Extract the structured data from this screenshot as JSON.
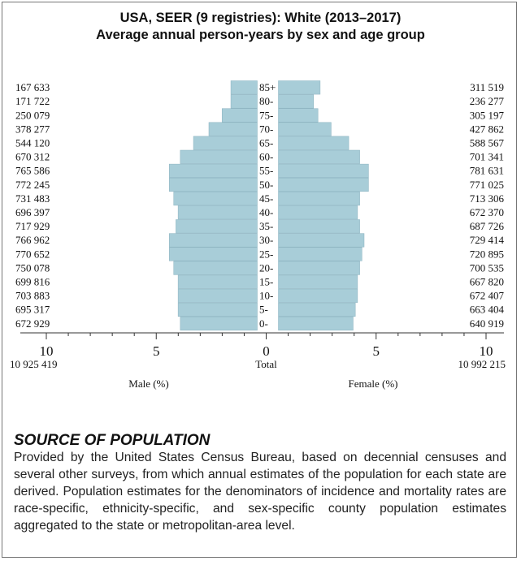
{
  "chart_data": {
    "type": "bar",
    "title": "USA, SEER (9 registries): White (2013–2017)",
    "subtitle": "Average annual person-years by sex and age group",
    "categories": [
      "0-",
      "5-",
      "10-",
      "15-",
      "20-",
      "25-",
      "30-",
      "35-",
      "40-",
      "45-",
      "50-",
      "55-",
      "60-",
      "65-",
      "70-",
      "75-",
      "80-",
      "85+"
    ],
    "series": [
      {
        "name": "Male (%)",
        "counts": [
          "672 929",
          "695 317",
          "703 883",
          "699 816",
          "750 078",
          "770 652",
          "766 962",
          "717 929",
          "696 397",
          "731 483",
          "772 245",
          "765 586",
          "670 312",
          "544 120",
          "378 277",
          "250 079",
          "171 722",
          "167 633"
        ],
        "values": [
          3.5,
          3.6,
          3.6,
          3.6,
          3.8,
          4.0,
          4.0,
          3.7,
          3.6,
          3.8,
          4.0,
          4.0,
          3.5,
          2.9,
          2.2,
          1.6,
          1.2,
          1.2
        ],
        "color": "#a8cdd8"
      },
      {
        "name": "Female (%)",
        "counts": [
          "640 919",
          "663 404",
          "672 407",
          "667 820",
          "700 535",
          "720 895",
          "729 414",
          "687 726",
          "672 370",
          "713 306",
          "771 025",
          "781 631",
          "701 341",
          "588 567",
          "427 862",
          "305 197",
          "236 277",
          "311 519"
        ],
        "values": [
          3.4,
          3.5,
          3.6,
          3.6,
          3.7,
          3.8,
          3.9,
          3.7,
          3.6,
          3.7,
          4.1,
          4.1,
          3.7,
          3.2,
          2.4,
          1.8,
          1.6,
          1.9
        ],
        "color": "#a8cdd8"
      }
    ],
    "xticks": [
      "10",
      "5",
      "0",
      "5",
      "10"
    ],
    "xlim": [
      -10,
      10
    ],
    "totals_label": "Total",
    "male_total": "10 925 419",
    "female_total": "10 992 215",
    "xlabel_left": "Male (%)",
    "xlabel_right": "Female (%)"
  },
  "note": {
    "heading": "SOURCE OF POPULATION",
    "body": "Provided by the United States Census Bureau, based on decennial censuses and several other surveys, from which annual estimates of the population for each state are derived. Population estimates for the denominators of incidence and mortality rates are race-specific, ethnicity-specific, and sex-specific county population estimates aggregated to the state or metropolitan-area level."
  }
}
